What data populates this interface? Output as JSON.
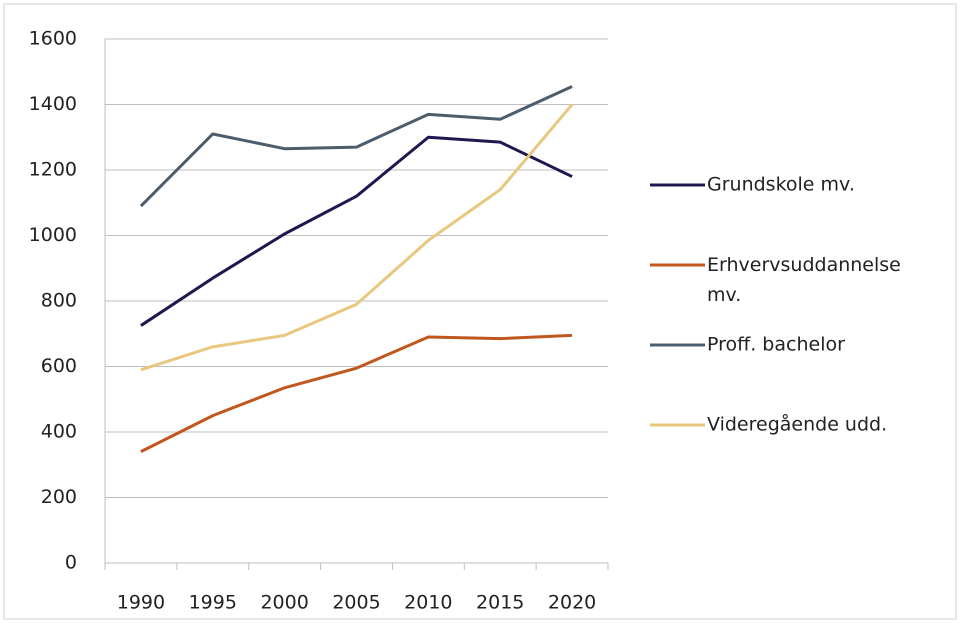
{
  "chart_data": {
    "type": "line",
    "categories": [
      "1990",
      "1995",
      "2000",
      "2005",
      "2010",
      "2015",
      "2020"
    ],
    "series": [
      {
        "name": "Grundskole mv.",
        "color": "#1f1850",
        "values": [
          725,
          870,
          1005,
          1120,
          1300,
          1285,
          1180
        ]
      },
      {
        "name": "Erhvervsuddannelse mv.",
        "color": "#c0571e",
        "values": [
          340,
          450,
          535,
          595,
          690,
          685,
          695
        ]
      },
      {
        "name": "Proff. bachelor",
        "color": "#4e5d6c",
        "values": [
          1090,
          1310,
          1265,
          1270,
          1370,
          1355,
          1455
        ]
      },
      {
        "name": "Videregående udd.",
        "color": "#e8c77e",
        "values": [
          590,
          660,
          695,
          790,
          985,
          1140,
          1400
        ]
      }
    ],
    "ylim": [
      0,
      1600
    ],
    "yticks": [
      0,
      200,
      400,
      600,
      800,
      1000,
      1200,
      1400,
      1600
    ],
    "grid": true,
    "legend": "right"
  }
}
